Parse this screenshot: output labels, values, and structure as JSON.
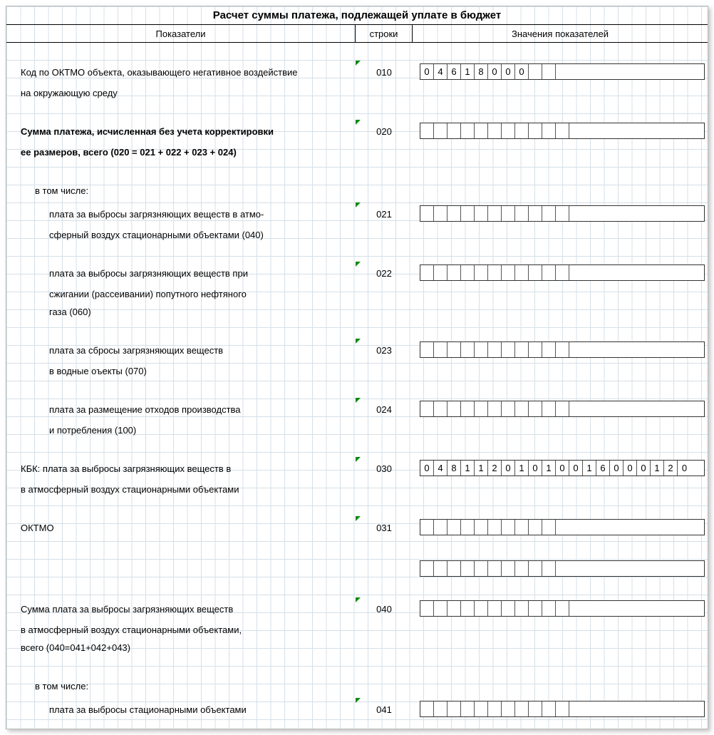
{
  "title": "Расчет суммы платежа, подлежащей уплате в бюджет",
  "headers": {
    "col1": "Показатели",
    "col2": "строки",
    "col3": "Значения показателей"
  },
  "rows": [
    {
      "code": "010",
      "label_lines": [
        "Код по ОКТМО объекта, оказывающего негативное воздействие",
        "на окружающую среду"
      ],
      "indent": 0,
      "bold": false,
      "cell_count": 11,
      "values": [
        "0",
        "4",
        "6",
        "1",
        "8",
        "0",
        "0",
        "0",
        "",
        "",
        ""
      ],
      "green": true
    },
    {
      "code": "020",
      "label_lines": [
        "Сумма платежа, исчисленная без учета корректировки",
        " ее размеров, всего (020 = 021 + 022 + 023 + 024)"
      ],
      "indent": 0,
      "bold": true,
      "cell_count": 12,
      "values": [
        "",
        "",
        "",
        "",
        "",
        "",
        "",
        "",
        "",
        "",
        "",
        ""
      ],
      "green": true
    },
    {
      "code": "",
      "label_lines": [
        "в том числе:"
      ],
      "indent": 1,
      "bold": false,
      "cell_count": 0,
      "values": [],
      "green": false
    },
    {
      "code": "021",
      "label_lines": [
        "плата за выбросы загрязняющих веществ в атмо-",
        "сферный воздух стационарными объектами (040)"
      ],
      "indent": 2,
      "bold": false,
      "cell_count": 12,
      "values": [
        "",
        "",
        "",
        "",
        "",
        "",
        "",
        "",
        "",
        "",
        "",
        ""
      ],
      "green": true
    },
    {
      "code": "022",
      "label_lines": [
        "плата за выбросы загрязняющих веществ при",
        "сжигании (рассеивании) попутного нефтяного",
        "газа (060)"
      ],
      "indent": 2,
      "bold": false,
      "cell_count": 12,
      "values": [
        "",
        "",
        "",
        "",
        "",
        "",
        "",
        "",
        "",
        "",
        "",
        ""
      ],
      "green": true
    },
    {
      "code": "023",
      "label_lines": [
        "плата за сбросы загрязняющих веществ",
        "в водные оъекты (070)"
      ],
      "indent": 2,
      "bold": false,
      "cell_count": 12,
      "values": [
        "",
        "",
        "",
        "",
        "",
        "",
        "",
        "",
        "",
        "",
        "",
        ""
      ],
      "green": true
    },
    {
      "code": "024",
      "label_lines": [
        "плата за размещение отходов производства",
        "и потребления (100)"
      ],
      "indent": 2,
      "bold": false,
      "cell_count": 12,
      "values": [
        "",
        "",
        "",
        "",
        "",
        "",
        "",
        "",
        "",
        "",
        "",
        ""
      ],
      "green": true
    },
    {
      "code": "030",
      "label_lines": [
        "КБК: плата за выбросы загрязняющих веществ в",
        "в атмосферный воздух стационарными объектами"
      ],
      "indent": 0,
      "bold": false,
      "cell_count": 20,
      "values": [
        "0",
        "4",
        "8",
        "1",
        "1",
        "2",
        "0",
        "1",
        "0",
        "1",
        "0",
        "0",
        "1",
        "6",
        "0",
        "0",
        "0",
        "1",
        "2",
        "0"
      ],
      "green": true
    },
    {
      "code": "031",
      "label_lines": [
        "ОКТМО"
      ],
      "indent": 0,
      "bold": false,
      "cell_count": 11,
      "values": [
        "",
        "",
        "",
        "",
        "",
        "",
        "",
        "",
        "",
        "",
        ""
      ],
      "green": true
    },
    {
      "code": "",
      "label_lines": [
        ""
      ],
      "indent": 0,
      "bold": false,
      "cell_count": 11,
      "values": [
        "",
        "",
        "",
        "",
        "",
        "",
        "",
        "",
        "",
        "",
        ""
      ],
      "green": false
    },
    {
      "code": "040",
      "label_lines": [
        "Сумма плата за выбросы загрязняющих веществ",
        "в атмосферный воздух стационарными объектами,",
        "всего (040=041+042+043)"
      ],
      "indent": 0,
      "bold": false,
      "cell_count": 12,
      "values": [
        "",
        "",
        "",
        "",
        "",
        "",
        "",
        "",
        "",
        "",
        "",
        ""
      ],
      "green": true
    },
    {
      "code": "",
      "label_lines": [
        "в том числе:"
      ],
      "indent": 1,
      "bold": false,
      "cell_count": 0,
      "values": [],
      "green": false
    },
    {
      "code": "041",
      "label_lines": [
        "плата за выбросы стационарными объектами"
      ],
      "indent": 2,
      "bold": false,
      "cell_count": 12,
      "values": [
        "",
        "",
        "",
        "",
        "",
        "",
        "",
        "",
        "",
        "",
        "",
        ""
      ],
      "green": true
    }
  ],
  "colors": {
    "grid": "#d5e0e8",
    "border": "#333333",
    "green_marker": "#0a8a0a",
    "text": "#000000",
    "background": "#ffffff"
  }
}
